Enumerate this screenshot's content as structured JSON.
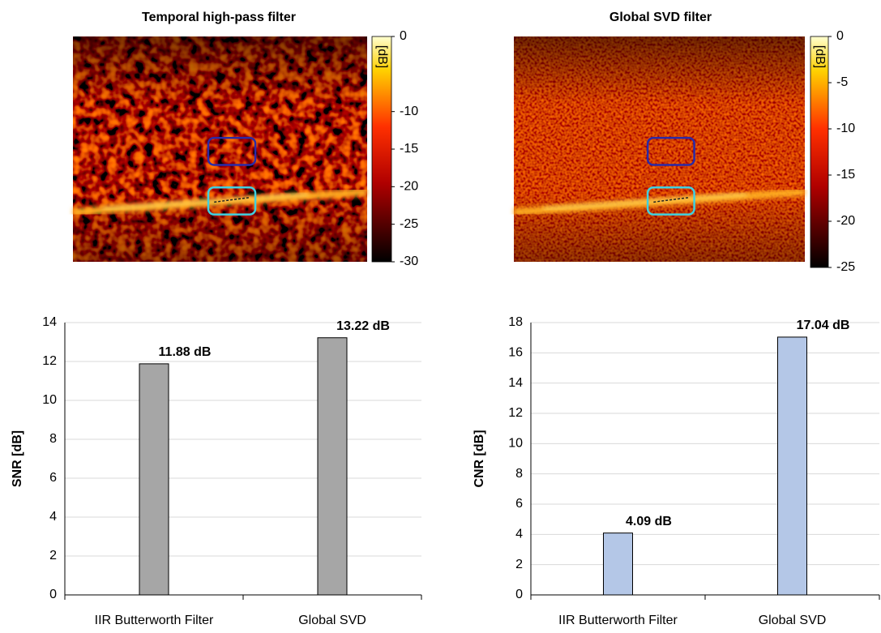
{
  "chart_data": [
    {
      "type": "image",
      "title": "Temporal high-pass filter",
      "colorbar_label": "[dB]",
      "clim": [
        -30,
        0
      ],
      "cticks": [
        0,
        -10,
        -15,
        -20,
        -25,
        -30
      ]
    },
    {
      "type": "image",
      "title": "Global SVD filter",
      "colorbar_label": "[dB]",
      "clim": [
        -25,
        0
      ],
      "cticks": [
        0,
        -5,
        -10,
        -15,
        -20,
        -25
      ]
    },
    {
      "type": "bar",
      "ylabel": "SNR [dB]",
      "categories": [
        "IIR Butterworth Filter",
        "Global SVD"
      ],
      "values": [
        11.88,
        13.22
      ],
      "value_labels": [
        "11.88 dB",
        "13.22 dB"
      ],
      "color": "#a6a6a6",
      "ylim": [
        0,
        14
      ],
      "yticks": [
        0,
        2,
        4,
        6,
        8,
        10,
        12,
        14
      ],
      "grid": true
    },
    {
      "type": "bar",
      "ylabel": "CNR [dB]",
      "categories": [
        "IIR Butterworth Filter",
        "Global SVD"
      ],
      "values": [
        4.09,
        17.04
      ],
      "value_labels": [
        "4.09 dB",
        "17.04 dB"
      ],
      "color": "#b4c7e7",
      "ylim": [
        0,
        18
      ],
      "yticks": [
        0,
        2,
        4,
        6,
        8,
        10,
        12,
        14,
        16,
        18
      ],
      "grid": true
    }
  ]
}
